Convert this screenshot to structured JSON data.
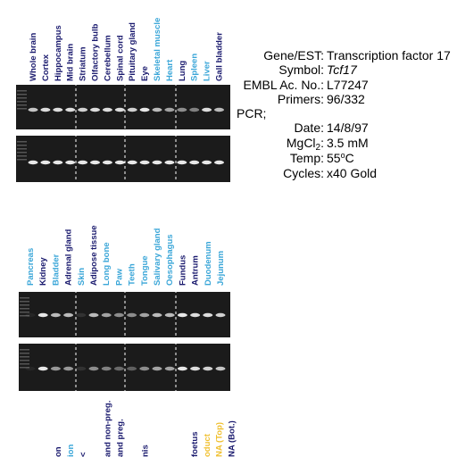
{
  "panel1": {
    "lanes": [
      {
        "label": "Whole brain",
        "color": "#1a1a6e"
      },
      {
        "label": "Cortex",
        "color": "#1a1a6e"
      },
      {
        "label": "Hippocampus",
        "color": "#1a1a6e"
      },
      {
        "label": "Mid brain",
        "color": "#1a1a6e"
      },
      {
        "label": "Striatum",
        "color": "#1a1a6e"
      },
      {
        "label": "Olfactory bulb",
        "color": "#1a1a6e"
      },
      {
        "label": "Cerebellum",
        "color": "#1a1a6e"
      },
      {
        "label": "Spinal cord",
        "color": "#1a1a6e"
      },
      {
        "label": "Pituitary gland",
        "color": "#1a1a6e"
      },
      {
        "label": "Eye",
        "color": "#1a1a6e"
      },
      {
        "label": "Skeletal muscle",
        "color": "#3aa6d8"
      },
      {
        "label": "Heart",
        "color": "#3aa6d8"
      },
      {
        "label": "Lung",
        "color": "#1a1a6e"
      },
      {
        "label": "Spleen",
        "color": "#3aa6d8"
      },
      {
        "label": "Liver",
        "color": "#3aa6d8"
      },
      {
        "label": "Gall bladder",
        "color": "#1a1a6e"
      }
    ]
  },
  "info": {
    "gene": {
      "label": "Gene/EST:",
      "value": "Transcription factor 17"
    },
    "symbol": {
      "label": "Symbol:",
      "value": "Tcf17"
    },
    "embl": {
      "label": "EMBL Ac. No.:",
      "value": "L77247"
    },
    "primers": {
      "label": "Primers:",
      "value": "96/332"
    },
    "pcr": "PCR;",
    "date": {
      "label": "Date:",
      "value": "14/8/97"
    },
    "mgcl": {
      "label": "MgCl",
      "sub": "2",
      "colon": ":",
      "value": "3.5 mM"
    },
    "temp": {
      "label": "Temp:",
      "value": "55",
      "sup": "o",
      "tail": "C"
    },
    "cycles": {
      "label": "Cycles:",
      "value": "x40 Gold"
    }
  },
  "panel2": {
    "lanes": [
      {
        "label": "Pancreas",
        "color": "#3aa6d8"
      },
      {
        "label": "Kidney",
        "color": "#1a1a6e"
      },
      {
        "label": "Bladder",
        "color": "#3aa6d8"
      },
      {
        "label": "Adrenal gland",
        "color": "#1a1a6e"
      },
      {
        "label": "Skin",
        "color": "#3aa6d8"
      },
      {
        "label": "Adipose tissue",
        "color": "#1a1a6e"
      },
      {
        "label": "Long bone",
        "color": "#3aa6d8"
      },
      {
        "label": "Paw",
        "color": "#3aa6d8"
      },
      {
        "label": "Teeth",
        "color": "#3aa6d8"
      },
      {
        "label": "Tongue",
        "color": "#3aa6d8"
      },
      {
        "label": "Salivary gland",
        "color": "#3aa6d8"
      },
      {
        "label": "Oesophagus",
        "color": "#3aa6d8"
      },
      {
        "label": "Fundus",
        "color": "#1a1a6e"
      },
      {
        "label": "Antrum",
        "color": "#1a1a6e"
      },
      {
        "label": "Duodenum",
        "color": "#3aa6d8"
      },
      {
        "label": "Jejunum",
        "color": "#3aa6d8"
      }
    ]
  },
  "panel3": {
    "lanes": [
      {
        "label": "on",
        "color": "#1a1a6e",
        "x": 0
      },
      {
        "label": "ion",
        "color": "#3aa6d8",
        "x": 1
      },
      {
        "label": "<",
        "color": "#1a1a6e",
        "x": 2
      },
      {
        "label": "and non-preg.",
        "color": "#1a1a6e",
        "x": 4
      },
      {
        "label": "and preg.",
        "color": "#1a1a6e",
        "x": 5
      },
      {
        "label": "nis",
        "color": "#1a1a6e",
        "x": 7
      },
      {
        "label": "foetus",
        "color": "#1a1a6e",
        "x": 11
      },
      {
        "label": "oduct",
        "color": "#f0c030",
        "x": 12
      },
      {
        "label": "NA (Top)",
        "color": "#f0c030",
        "x": 13
      },
      {
        "label": "NA (Bot.)",
        "color": "#1a1a6e",
        "x": 14
      }
    ]
  }
}
